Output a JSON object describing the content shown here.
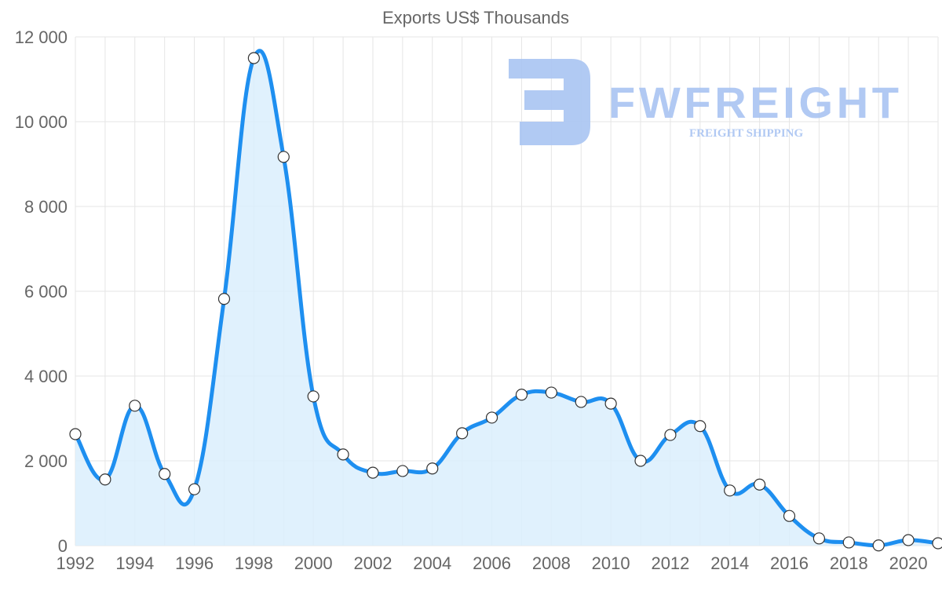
{
  "chart_data": {
    "type": "area",
    "title": "Exports US$ Thousands",
    "xlabel": "",
    "ylabel": "",
    "ylim": [
      0,
      12000
    ],
    "yticks": [
      0,
      2000,
      4000,
      6000,
      8000,
      10000,
      12000
    ],
    "ytick_labels": [
      "0",
      "2 000",
      "4 000",
      "6 000",
      "8 000",
      "10 000",
      "12 000"
    ],
    "x": [
      1992,
      1993,
      1994,
      1995,
      1996,
      1997,
      1998,
      1999,
      2000,
      2001,
      2002,
      2003,
      2004,
      2005,
      2006,
      2007,
      2008,
      2009,
      2010,
      2011,
      2012,
      2013,
      2014,
      2015,
      2016,
      2017,
      2018,
      2019,
      2020,
      2021
    ],
    "xtick_labels": [
      "1992",
      "1994",
      "1996",
      "1998",
      "2000",
      "2002",
      "2004",
      "2006",
      "2008",
      "2010",
      "2012",
      "2014",
      "2016",
      "2018",
      "2020"
    ],
    "series": [
      {
        "name": "Exports US$ Thousands",
        "values": [
          2630,
          1560,
          3300,
          1690,
          1330,
          5820,
          11500,
          9170,
          3520,
          2150,
          1720,
          1760,
          1820,
          2650,
          3020,
          3560,
          3610,
          3390,
          3350,
          2000,
          2610,
          2820,
          1300,
          1440,
          700,
          170,
          75,
          5,
          130,
          55
        ]
      }
    ],
    "grid": true,
    "colors": {
      "line": "#1e8ff0",
      "fill": "#dbeefd",
      "grid": "#e5e5e5",
      "point_fill": "#ffffff",
      "point_stroke": "#333333"
    }
  },
  "watermark": {
    "brand": "FWFREIGHT",
    "tagline": "FREIGHT SHIPPING",
    "color": "#a9c4f2"
  }
}
